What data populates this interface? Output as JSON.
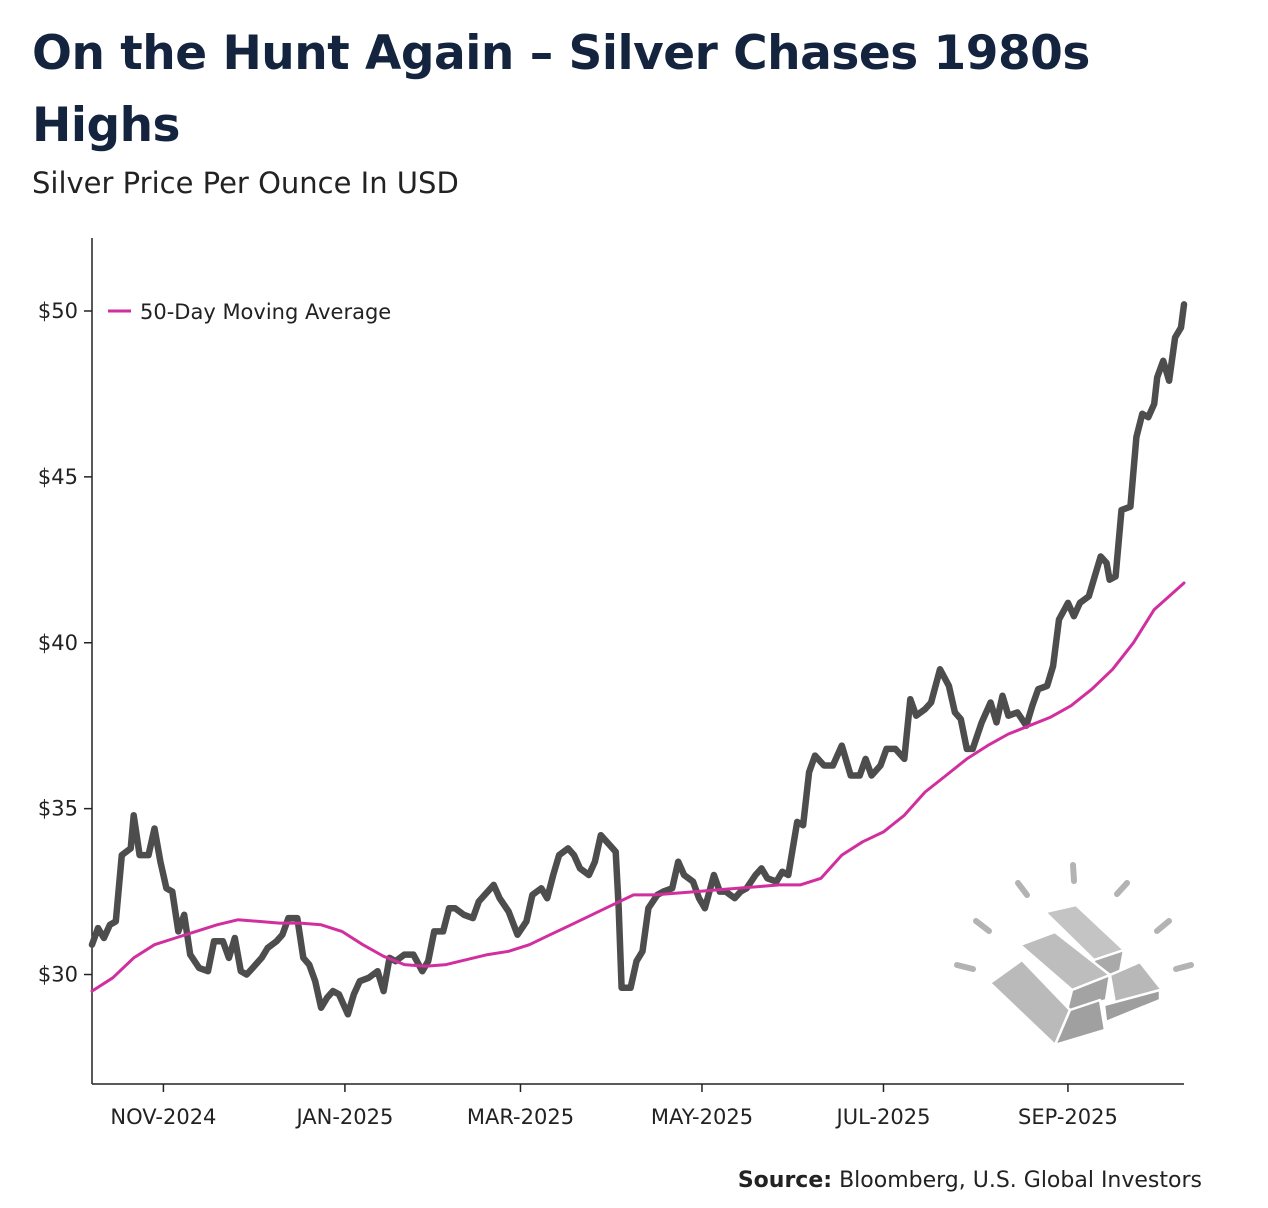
{
  "title": "On the Hunt Again – Silver Chases 1980s Highs",
  "subtitle": "Silver Price Per Ounce In USD",
  "source": {
    "label": "Source:",
    "text": "Bloomberg, U.S. Global Investors"
  },
  "colors": {
    "title": "#14243f",
    "price_line": "#4d4d4d",
    "moving_average": "#d12f9e",
    "axis": "#222222",
    "icon": "#b3b3b3"
  },
  "icon": "gold-bars-icon",
  "chart_data": {
    "type": "line",
    "title": "On the Hunt Again – Silver Chases 1980s Highs",
    "subtitle": "Silver Price Per Ounce In USD",
    "xlabel": "",
    "ylabel": "",
    "x_range": [
      "2024-10-08",
      "2025-10-10"
    ],
    "ylim": [
      26.7,
      52.2
    ],
    "y_ticks": [
      30,
      35,
      40,
      45,
      50
    ],
    "y_tick_labels": [
      "$30",
      "$35",
      "$40",
      "$45",
      "$50"
    ],
    "x_ticks": [
      "2024-11-01",
      "2025-01-01",
      "2025-03-01",
      "2025-05-01",
      "2025-07-01",
      "2025-09-01"
    ],
    "x_tick_labels": [
      "NOV-2024",
      "JAN-2025",
      "MAR-2025",
      "MAY-2025",
      "JUL-2025",
      "SEP-2025"
    ],
    "grid": false,
    "legend": {
      "position": "top-left",
      "entries": [
        "50-Day Moving Average"
      ]
    },
    "series": [
      {
        "name": "",
        "color": "#4d4d4d",
        "points": [
          [
            "2024-10-08",
            30.9
          ],
          [
            "2024-10-10",
            31.4
          ],
          [
            "2024-10-12",
            31.1
          ],
          [
            "2024-10-14",
            31.5
          ],
          [
            "2024-10-16",
            31.6
          ],
          [
            "2024-10-18",
            33.6
          ],
          [
            "2024-10-21",
            33.8
          ],
          [
            "2024-10-22",
            34.8
          ],
          [
            "2024-10-24",
            33.6
          ],
          [
            "2024-10-27",
            33.6
          ],
          [
            "2024-10-29",
            34.4
          ],
          [
            "2024-10-31",
            33.4
          ],
          [
            "2024-11-02",
            32.6
          ],
          [
            "2024-11-04",
            32.5
          ],
          [
            "2024-11-06",
            31.3
          ],
          [
            "2024-11-08",
            31.8
          ],
          [
            "2024-11-10",
            30.6
          ],
          [
            "2024-11-13",
            30.2
          ],
          [
            "2024-11-16",
            30.1
          ],
          [
            "2024-11-18",
            31.0
          ],
          [
            "2024-11-21",
            31.0
          ],
          [
            "2024-11-23",
            30.5
          ],
          [
            "2024-11-25",
            31.1
          ],
          [
            "2024-11-27",
            30.1
          ],
          [
            "2024-11-29",
            30.0
          ],
          [
            "2024-12-01",
            30.2
          ],
          [
            "2024-12-04",
            30.5
          ],
          [
            "2024-12-06",
            30.8
          ],
          [
            "2024-12-09",
            31.0
          ],
          [
            "2024-12-11",
            31.2
          ],
          [
            "2024-12-13",
            31.7
          ],
          [
            "2024-12-16",
            31.7
          ],
          [
            "2024-12-18",
            30.5
          ],
          [
            "2024-12-20",
            30.3
          ],
          [
            "2024-12-22",
            29.8
          ],
          [
            "2024-12-24",
            29.0
          ],
          [
            "2024-12-26",
            29.3
          ],
          [
            "2024-12-28",
            29.5
          ],
          [
            "2024-12-30",
            29.4
          ],
          [
            "2025-01-02",
            28.8
          ],
          [
            "2025-01-04",
            29.4
          ],
          [
            "2025-01-06",
            29.8
          ],
          [
            "2025-01-09",
            29.9
          ],
          [
            "2025-01-12",
            30.1
          ],
          [
            "2025-01-14",
            29.5
          ],
          [
            "2025-01-16",
            30.5
          ],
          [
            "2025-01-18",
            30.4
          ],
          [
            "2025-01-21",
            30.6
          ],
          [
            "2025-01-24",
            30.6
          ],
          [
            "2025-01-27",
            30.1
          ],
          [
            "2025-01-29",
            30.4
          ],
          [
            "2025-01-31",
            31.3
          ],
          [
            "2025-02-03",
            31.3
          ],
          [
            "2025-02-05",
            32.0
          ],
          [
            "2025-02-07",
            32.0
          ],
          [
            "2025-02-10",
            31.8
          ],
          [
            "2025-02-13",
            31.7
          ],
          [
            "2025-02-15",
            32.2
          ],
          [
            "2025-02-18",
            32.5
          ],
          [
            "2025-02-20",
            32.7
          ],
          [
            "2025-02-22",
            32.3
          ],
          [
            "2025-02-25",
            31.9
          ],
          [
            "2025-02-28",
            31.2
          ],
          [
            "2025-03-03",
            31.6
          ],
          [
            "2025-03-05",
            32.4
          ],
          [
            "2025-03-08",
            32.6
          ],
          [
            "2025-03-10",
            32.3
          ],
          [
            "2025-03-12",
            33.0
          ],
          [
            "2025-03-14",
            33.6
          ],
          [
            "2025-03-17",
            33.8
          ],
          [
            "2025-03-19",
            33.6
          ],
          [
            "2025-03-21",
            33.2
          ],
          [
            "2025-03-24",
            33.0
          ],
          [
            "2025-03-26",
            33.4
          ],
          [
            "2025-03-28",
            34.2
          ],
          [
            "2025-03-31",
            33.9
          ],
          [
            "2025-04-02",
            33.7
          ],
          [
            "2025-04-03",
            32.0
          ],
          [
            "2025-04-04",
            29.6
          ],
          [
            "2025-04-07",
            29.6
          ],
          [
            "2025-04-09",
            30.4
          ],
          [
            "2025-04-11",
            30.7
          ],
          [
            "2025-04-13",
            32.0
          ],
          [
            "2025-04-16",
            32.4
          ],
          [
            "2025-04-18",
            32.5
          ],
          [
            "2025-04-21",
            32.6
          ],
          [
            "2025-04-23",
            33.4
          ],
          [
            "2025-04-25",
            33.0
          ],
          [
            "2025-04-28",
            32.8
          ],
          [
            "2025-04-30",
            32.3
          ],
          [
            "2025-05-02",
            32.0
          ],
          [
            "2025-05-05",
            33.0
          ],
          [
            "2025-05-07",
            32.5
          ],
          [
            "2025-05-09",
            32.5
          ],
          [
            "2025-05-12",
            32.3
          ],
          [
            "2025-05-14",
            32.5
          ],
          [
            "2025-05-16",
            32.6
          ],
          [
            "2025-05-19",
            33.0
          ],
          [
            "2025-05-21",
            33.2
          ],
          [
            "2025-05-23",
            32.9
          ],
          [
            "2025-05-26",
            32.8
          ],
          [
            "2025-05-28",
            33.1
          ],
          [
            "2025-05-30",
            33.0
          ],
          [
            "2025-06-02",
            34.6
          ],
          [
            "2025-06-04",
            34.5
          ],
          [
            "2025-06-06",
            36.1
          ],
          [
            "2025-06-08",
            36.6
          ],
          [
            "2025-06-11",
            36.3
          ],
          [
            "2025-06-14",
            36.3
          ],
          [
            "2025-06-17",
            36.9
          ],
          [
            "2025-06-20",
            36.0
          ],
          [
            "2025-06-23",
            36.0
          ],
          [
            "2025-06-25",
            36.5
          ],
          [
            "2025-06-27",
            36.0
          ],
          [
            "2025-06-30",
            36.3
          ],
          [
            "2025-07-02",
            36.8
          ],
          [
            "2025-07-05",
            36.8
          ],
          [
            "2025-07-08",
            36.5
          ],
          [
            "2025-07-10",
            38.3
          ],
          [
            "2025-07-12",
            37.8
          ],
          [
            "2025-07-15",
            38.0
          ],
          [
            "2025-07-17",
            38.2
          ],
          [
            "2025-07-20",
            39.2
          ],
          [
            "2025-07-23",
            38.7
          ],
          [
            "2025-07-25",
            37.9
          ],
          [
            "2025-07-27",
            37.7
          ],
          [
            "2025-07-29",
            36.8
          ],
          [
            "2025-07-31",
            36.8
          ],
          [
            "2025-08-03",
            37.6
          ],
          [
            "2025-08-06",
            38.2
          ],
          [
            "2025-08-08",
            37.6
          ],
          [
            "2025-08-10",
            38.4
          ],
          [
            "2025-08-12",
            37.8
          ],
          [
            "2025-08-15",
            37.9
          ],
          [
            "2025-08-18",
            37.5
          ],
          [
            "2025-08-20",
            38.1
          ],
          [
            "2025-08-22",
            38.6
          ],
          [
            "2025-08-25",
            38.7
          ],
          [
            "2025-08-27",
            39.3
          ],
          [
            "2025-08-29",
            40.7
          ],
          [
            "2025-09-01",
            41.2
          ],
          [
            "2025-09-03",
            40.8
          ],
          [
            "2025-09-05",
            41.2
          ],
          [
            "2025-09-08",
            41.4
          ],
          [
            "2025-09-10",
            42.0
          ],
          [
            "2025-09-12",
            42.6
          ],
          [
            "2025-09-14",
            42.4
          ],
          [
            "2025-09-15",
            41.9
          ],
          [
            "2025-09-17",
            42.0
          ],
          [
            "2025-09-19",
            44.0
          ],
          [
            "2025-09-22",
            44.1
          ],
          [
            "2025-09-24",
            46.2
          ],
          [
            "2025-09-26",
            46.9
          ],
          [
            "2025-09-28",
            46.8
          ],
          [
            "2025-09-30",
            47.2
          ],
          [
            "2025-10-01",
            48.0
          ],
          [
            "2025-10-03",
            48.5
          ],
          [
            "2025-10-05",
            47.9
          ],
          [
            "2025-10-07",
            49.2
          ],
          [
            "2025-10-09",
            49.5
          ],
          [
            "2025-10-10",
            50.2
          ]
        ]
      },
      {
        "name": "50-Day Moving Average",
        "color": "#d12f9e",
        "points": [
          [
            "2024-10-08",
            29.5
          ],
          [
            "2024-10-15",
            29.9
          ],
          [
            "2024-10-22",
            30.5
          ],
          [
            "2024-10-29",
            30.9
          ],
          [
            "2024-11-05",
            31.1
          ],
          [
            "2024-11-12",
            31.3
          ],
          [
            "2024-11-19",
            31.5
          ],
          [
            "2024-11-26",
            31.65
          ],
          [
            "2024-12-03",
            31.6
          ],
          [
            "2024-12-10",
            31.55
          ],
          [
            "2024-12-17",
            31.55
          ],
          [
            "2024-12-24",
            31.5
          ],
          [
            "2024-12-31",
            31.3
          ],
          [
            "2025-01-07",
            30.9
          ],
          [
            "2025-01-14",
            30.55
          ],
          [
            "2025-01-21",
            30.3
          ],
          [
            "2025-01-28",
            30.25
          ],
          [
            "2025-02-04",
            30.3
          ],
          [
            "2025-02-11",
            30.45
          ],
          [
            "2025-02-18",
            30.6
          ],
          [
            "2025-02-25",
            30.7
          ],
          [
            "2025-03-04",
            30.9
          ],
          [
            "2025-03-11",
            31.2
          ],
          [
            "2025-03-18",
            31.5
          ],
          [
            "2025-03-25",
            31.8
          ],
          [
            "2025-04-01",
            32.1
          ],
          [
            "2025-04-08",
            32.4
          ],
          [
            "2025-04-15",
            32.4
          ],
          [
            "2025-04-22",
            32.45
          ],
          [
            "2025-04-29",
            32.5
          ],
          [
            "2025-05-06",
            32.55
          ],
          [
            "2025-05-13",
            32.6
          ],
          [
            "2025-05-20",
            32.65
          ],
          [
            "2025-05-27",
            32.7
          ],
          [
            "2025-06-03",
            32.7
          ],
          [
            "2025-06-10",
            32.9
          ],
          [
            "2025-06-17",
            33.6
          ],
          [
            "2025-06-24",
            34.0
          ],
          [
            "2025-07-01",
            34.3
          ],
          [
            "2025-07-08",
            34.8
          ],
          [
            "2025-07-15",
            35.5
          ],
          [
            "2025-07-22",
            36.0
          ],
          [
            "2025-07-29",
            36.5
          ],
          [
            "2025-08-05",
            36.9
          ],
          [
            "2025-08-12",
            37.25
          ],
          [
            "2025-08-19",
            37.5
          ],
          [
            "2025-08-26",
            37.75
          ],
          [
            "2025-09-02",
            38.1
          ],
          [
            "2025-09-09",
            38.6
          ],
          [
            "2025-09-16",
            39.2
          ],
          [
            "2025-09-23",
            40.0
          ],
          [
            "2025-09-30",
            41.0
          ],
          [
            "2025-10-10",
            41.8
          ]
        ]
      }
    ]
  }
}
